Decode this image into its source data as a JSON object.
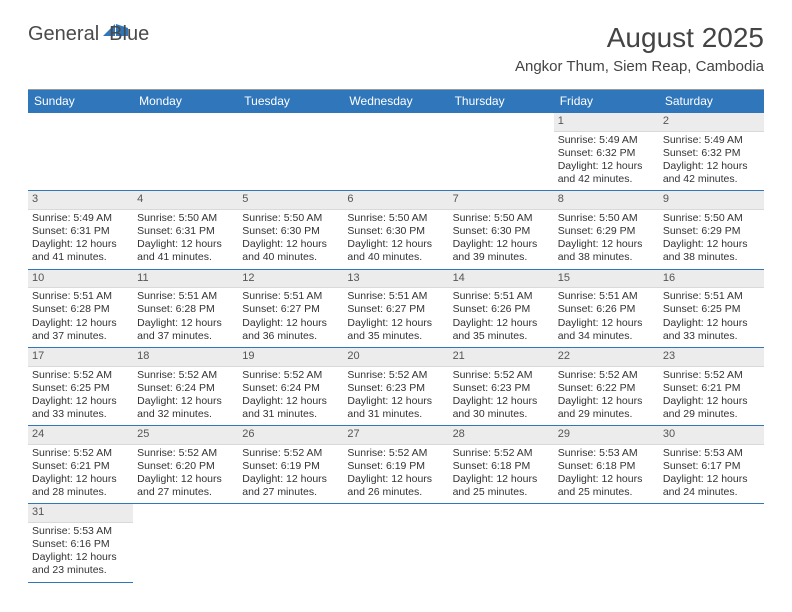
{
  "logo": {
    "part1": "General",
    "part2": "Blue"
  },
  "title": "August 2025",
  "subtitle": "Angkor Thum, Siem Reap, Cambodia",
  "colors": {
    "header_bg": "#2f76bb",
    "header_text": "#ffffff",
    "daynum_bg": "#ececec",
    "row_divider": "#2f76bb",
    "text": "#333333"
  },
  "dayheads": [
    "Sunday",
    "Monday",
    "Tuesday",
    "Wednesday",
    "Thursday",
    "Friday",
    "Saturday"
  ],
  "weeks": [
    [
      null,
      null,
      null,
      null,
      null,
      {
        "n": "1",
        "sr": "5:49 AM",
        "ss": "6:32 PM",
        "dl": "12 hours and 42 minutes."
      },
      {
        "n": "2",
        "sr": "5:49 AM",
        "ss": "6:32 PM",
        "dl": "12 hours and 42 minutes."
      }
    ],
    [
      {
        "n": "3",
        "sr": "5:49 AM",
        "ss": "6:31 PM",
        "dl": "12 hours and 41 minutes."
      },
      {
        "n": "4",
        "sr": "5:50 AM",
        "ss": "6:31 PM",
        "dl": "12 hours and 41 minutes."
      },
      {
        "n": "5",
        "sr": "5:50 AM",
        "ss": "6:30 PM",
        "dl": "12 hours and 40 minutes."
      },
      {
        "n": "6",
        "sr": "5:50 AM",
        "ss": "6:30 PM",
        "dl": "12 hours and 40 minutes."
      },
      {
        "n": "7",
        "sr": "5:50 AM",
        "ss": "6:30 PM",
        "dl": "12 hours and 39 minutes."
      },
      {
        "n": "8",
        "sr": "5:50 AM",
        "ss": "6:29 PM",
        "dl": "12 hours and 38 minutes."
      },
      {
        "n": "9",
        "sr": "5:50 AM",
        "ss": "6:29 PM",
        "dl": "12 hours and 38 minutes."
      }
    ],
    [
      {
        "n": "10",
        "sr": "5:51 AM",
        "ss": "6:28 PM",
        "dl": "12 hours and 37 minutes."
      },
      {
        "n": "11",
        "sr": "5:51 AM",
        "ss": "6:28 PM",
        "dl": "12 hours and 37 minutes."
      },
      {
        "n": "12",
        "sr": "5:51 AM",
        "ss": "6:27 PM",
        "dl": "12 hours and 36 minutes."
      },
      {
        "n": "13",
        "sr": "5:51 AM",
        "ss": "6:27 PM",
        "dl": "12 hours and 35 minutes."
      },
      {
        "n": "14",
        "sr": "5:51 AM",
        "ss": "6:26 PM",
        "dl": "12 hours and 35 minutes."
      },
      {
        "n": "15",
        "sr": "5:51 AM",
        "ss": "6:26 PM",
        "dl": "12 hours and 34 minutes."
      },
      {
        "n": "16",
        "sr": "5:51 AM",
        "ss": "6:25 PM",
        "dl": "12 hours and 33 minutes."
      }
    ],
    [
      {
        "n": "17",
        "sr": "5:52 AM",
        "ss": "6:25 PM",
        "dl": "12 hours and 33 minutes."
      },
      {
        "n": "18",
        "sr": "5:52 AM",
        "ss": "6:24 PM",
        "dl": "12 hours and 32 minutes."
      },
      {
        "n": "19",
        "sr": "5:52 AM",
        "ss": "6:24 PM",
        "dl": "12 hours and 31 minutes."
      },
      {
        "n": "20",
        "sr": "5:52 AM",
        "ss": "6:23 PM",
        "dl": "12 hours and 31 minutes."
      },
      {
        "n": "21",
        "sr": "5:52 AM",
        "ss": "6:23 PM",
        "dl": "12 hours and 30 minutes."
      },
      {
        "n": "22",
        "sr": "5:52 AM",
        "ss": "6:22 PM",
        "dl": "12 hours and 29 minutes."
      },
      {
        "n": "23",
        "sr": "5:52 AM",
        "ss": "6:21 PM",
        "dl": "12 hours and 29 minutes."
      }
    ],
    [
      {
        "n": "24",
        "sr": "5:52 AM",
        "ss": "6:21 PM",
        "dl": "12 hours and 28 minutes."
      },
      {
        "n": "25",
        "sr": "5:52 AM",
        "ss": "6:20 PM",
        "dl": "12 hours and 27 minutes."
      },
      {
        "n": "26",
        "sr": "5:52 AM",
        "ss": "6:19 PM",
        "dl": "12 hours and 27 minutes."
      },
      {
        "n": "27",
        "sr": "5:52 AM",
        "ss": "6:19 PM",
        "dl": "12 hours and 26 minutes."
      },
      {
        "n": "28",
        "sr": "5:52 AM",
        "ss": "6:18 PM",
        "dl": "12 hours and 25 minutes."
      },
      {
        "n": "29",
        "sr": "5:53 AM",
        "ss": "6:18 PM",
        "dl": "12 hours and 25 minutes."
      },
      {
        "n": "30",
        "sr": "5:53 AM",
        "ss": "6:17 PM",
        "dl": "12 hours and 24 minutes."
      }
    ],
    [
      {
        "n": "31",
        "sr": "5:53 AM",
        "ss": "6:16 PM",
        "dl": "12 hours and 23 minutes."
      },
      null,
      null,
      null,
      null,
      null,
      null
    ]
  ],
  "labels": {
    "sunrise": "Sunrise: ",
    "sunset": "Sunset: ",
    "daylight": "Daylight: "
  }
}
